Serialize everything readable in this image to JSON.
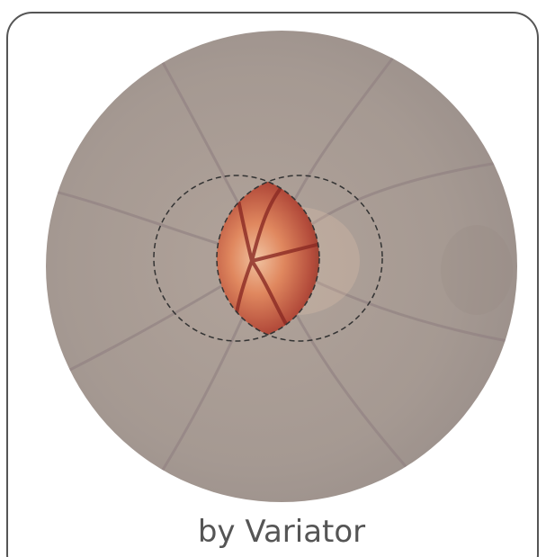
{
  "caption": "by Variator"
}
